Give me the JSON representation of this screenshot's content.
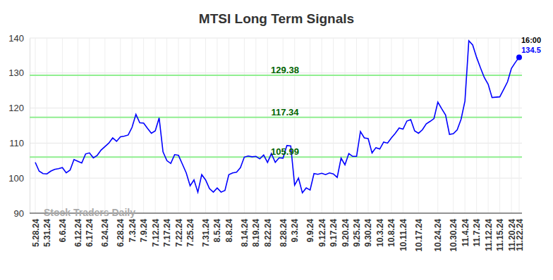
{
  "chart_data": {
    "type": "line",
    "title": "MTSI Long Term Signals",
    "watermark": "Stock Traders Daily",
    "time_label": "16:00",
    "color": "#0000ff",
    "grid": true,
    "ylim": [
      90,
      140
    ],
    "yticks": [
      90,
      100,
      110,
      120,
      130,
      140
    ],
    "levels": [
      129.38,
      117.34,
      105.99
    ],
    "categories": [
      "5.28.24",
      null,
      null,
      "5.31.24",
      null,
      null,
      null,
      "6.6.24",
      null,
      null,
      null,
      "6.12.24",
      null,
      null,
      "6.17.24",
      null,
      null,
      null,
      "6.24.24",
      null,
      null,
      null,
      "6.28.24",
      null,
      null,
      "7.3.24",
      null,
      null,
      "7.9.24",
      null,
      null,
      "7.12.24",
      null,
      null,
      "7.17.24",
      null,
      null,
      "7.22.24",
      null,
      null,
      "7.25.24",
      null,
      null,
      null,
      "7.31.24",
      null,
      null,
      "8.5.24",
      null,
      null,
      "8.8.24",
      null,
      null,
      null,
      "8.14.24",
      null,
      null,
      "8.19.24",
      null,
      null,
      "8.22.24",
      null,
      null,
      null,
      "8.28.24",
      null,
      null,
      "9.3.24",
      null,
      null,
      null,
      "9.9.24",
      null,
      null,
      "9.12.24",
      null,
      null,
      "9.17.24",
      null,
      null,
      "9.20.24",
      null,
      null,
      "9.25.24",
      null,
      null,
      "9.30.24",
      null,
      null,
      "10.3.24",
      null,
      null,
      "10.8.24",
      null,
      null,
      "10.11.24",
      null,
      null,
      null,
      "10.17.24",
      null,
      null,
      null,
      null,
      "10.24.24",
      null,
      null,
      null,
      "10.30.24",
      null,
      null,
      "11.4.24",
      null,
      null,
      "11.7.24",
      null,
      null,
      "11.12.24",
      null,
      null,
      "11.15.24",
      null,
      null,
      "11.20.24",
      null,
      "11.22.24"
    ],
    "values": [
      104.5,
      102.0,
      101.3,
      101.2,
      102.0,
      102.5,
      102.7,
      103.0,
      101.5,
      102.3,
      105.3,
      104.8,
      104.3,
      106.9,
      107.2,
      105.8,
      106.5,
      108.0,
      109.0,
      110.0,
      111.5,
      110.5,
      111.8,
      112.0,
      112.3,
      114.5,
      118.2,
      115.8,
      115.7,
      114.2,
      112.8,
      113.5,
      117.2,
      107.5,
      105.0,
      104.2,
      106.7,
      106.5,
      104.0,
      101.5,
      97.8,
      99.5,
      96.0,
      101.0,
      99.5,
      97.0,
      96.0,
      97.2,
      96.0,
      96.5,
      101.0,
      101.5,
      101.7,
      103.0,
      106.0,
      106.3,
      106.1,
      106.2,
      105.5,
      106.6,
      104.5,
      107.0,
      104.5,
      105.8,
      105.7,
      109.3,
      109.2,
      98.0,
      100.0,
      95.8,
      97.2,
      96.6,
      101.3,
      101.1,
      101.4,
      101.0,
      101.5,
      101.2,
      100.2,
      105.7,
      103.8,
      107.0,
      106.2,
      106.2,
      113.3,
      111.5,
      111.3,
      107.2,
      108.7,
      108.3,
      110.3,
      110.0,
      111.5,
      112.8,
      114.3,
      114.0,
      116.3,
      116.7,
      113.5,
      112.8,
      113.8,
      115.5,
      116.2,
      117.0,
      121.7,
      119.8,
      118.0,
      112.5,
      112.7,
      113.8,
      116.8,
      122.0,
      139.2,
      138.0,
      134.5,
      131.5,
      128.7,
      126.8,
      123.0,
      123.1,
      123.2,
      125.3,
      127.5,
      131.3,
      133.0,
      134.5
    ]
  }
}
